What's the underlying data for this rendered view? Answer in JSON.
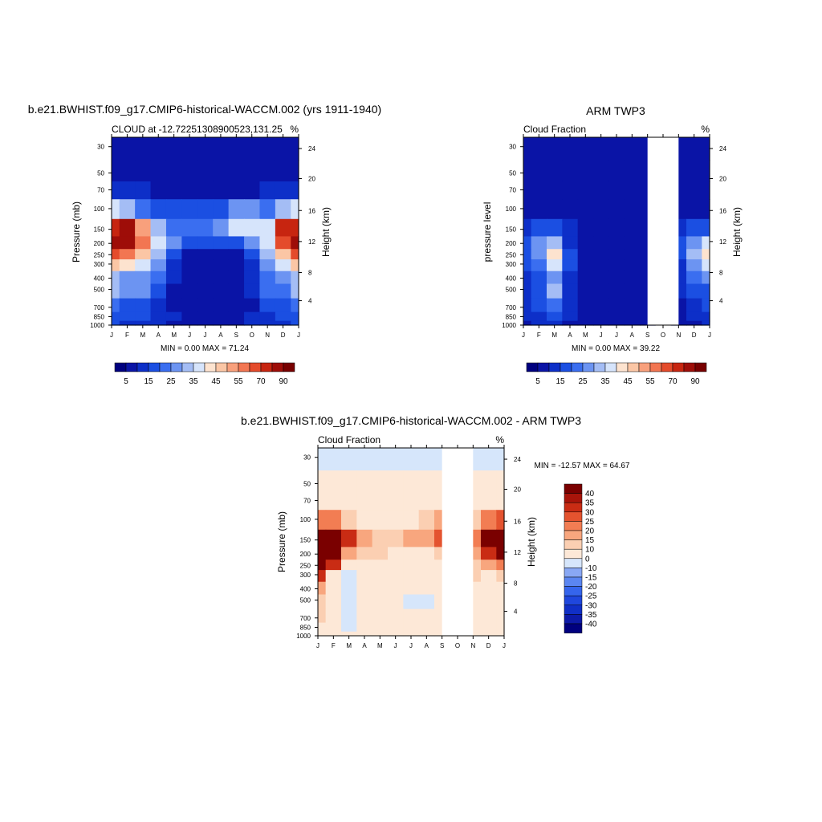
{
  "months": [
    "J",
    "F",
    "M",
    "A",
    "M",
    "J",
    "J",
    "A",
    "S",
    "O",
    "N",
    "D",
    "J"
  ],
  "pressure_ticks": [
    "30",
    "50",
    "70",
    "100",
    "150",
    "200",
    "250",
    "300",
    "400",
    "500",
    "700",
    "850",
    "1000"
  ],
  "height_ticks": [
    "24",
    "20",
    "16",
    "12",
    "8",
    "4"
  ],
  "cbar_labels": [
    "5",
    "15",
    "25",
    "35",
    "45",
    "55",
    "70",
    "90"
  ],
  "diff_cbar_labels": [
    "40",
    "35",
    "30",
    "25",
    "20",
    "15",
    "10",
    "0",
    "-10",
    "-15",
    "-20",
    "-25",
    "-30",
    "-35",
    "-40"
  ],
  "colors": {
    "abs_levels": [
      "#00007f",
      "#0a14a6",
      "#0d2fc8",
      "#1b4fe2",
      "#3a6ef0",
      "#6c94f2",
      "#a4bdf5",
      "#d6e4fb",
      "#fde3cf",
      "#fbc6a5",
      "#f8a07c",
      "#f27652",
      "#e44b2b",
      "#c72510",
      "#9e0d08",
      "#780000"
    ],
    "diff_levels": [
      "#00007f",
      "#0d1aa8",
      "#102fc6",
      "#1f47dd",
      "#3565ec",
      "#5b86f1",
      "#89a8f4",
      "#d6e6fb",
      "#fde8d7",
      "#fbcfb2",
      "#f8a67e",
      "#f27d53",
      "#e4532f",
      "#c92c14",
      "#a8140a",
      "#7a0000"
    ]
  },
  "chart_data": [
    {
      "type": "heatmap",
      "title": "b.e21.BWHIST.f09_g17.CMIP6-historical-WACCM.002 (yrs 1911-1940)",
      "subtitle_left": "CLOUD at -12.72251308900523,131.25",
      "subtitle_right": "%",
      "ylabel": "Pressure (mb)",
      "ylabel_right": "Height (km)",
      "min_max": "MIN =   0.00 MAX =  71.24",
      "values": [
        [
          4,
          3,
          3,
          3,
          2,
          2,
          2,
          2,
          2,
          3,
          3,
          4,
          4
        ],
        [
          4,
          3,
          3,
          3,
          2,
          2,
          2,
          2,
          2,
          3,
          3,
          4,
          4
        ],
        [
          8,
          6,
          5,
          4,
          3,
          3,
          3,
          3,
          3,
          4,
          5,
          7,
          8
        ],
        [
          30,
          26,
          18,
          12,
          10,
          10,
          11,
          13,
          20,
          24,
          18,
          25,
          30
        ],
        [
          68,
          70,
          45,
          25,
          18,
          15,
          18,
          22,
          30,
          32,
          30,
          60,
          68
        ],
        [
          70,
          70,
          52,
          30,
          20,
          12,
          10,
          10,
          12,
          20,
          30,
          58,
          70
        ],
        [
          55,
          50,
          40,
          26,
          12,
          4,
          3,
          3,
          4,
          10,
          25,
          40,
          55
        ],
        [
          40,
          35,
          30,
          20,
          8,
          2,
          1,
          1,
          2,
          8,
          22,
          30,
          40
        ],
        [
          28,
          22,
          24,
          15,
          5,
          1,
          1,
          1,
          1,
          6,
          18,
          22,
          28
        ],
        [
          26,
          20,
          22,
          14,
          3,
          1,
          1,
          1,
          1,
          5,
          16,
          18,
          26
        ],
        [
          18,
          12,
          14,
          9,
          3,
          2,
          2,
          2,
          2,
          4,
          10,
          12,
          18
        ],
        [
          14,
          10,
          10,
          8,
          5,
          4,
          4,
          4,
          4,
          6,
          8,
          10,
          14
        ],
        [
          12,
          8,
          8,
          6,
          4,
          3,
          3,
          3,
          3,
          5,
          6,
          8,
          12
        ]
      ],
      "gap_columns": []
    },
    {
      "type": "heatmap",
      "title": "ARM TWP3",
      "subtitle_left": "Cloud Fraction",
      "subtitle_right": "%",
      "ylabel": "pressure level",
      "ylabel_right": "Height (km)",
      "min_max": "MIN =   0.00 MAX =  39.22",
      "values": [
        [
          0,
          0,
          0,
          0,
          0,
          0,
          0,
          0,
          0,
          null,
          0,
          0,
          0
        ],
        [
          0,
          0,
          0,
          0,
          0,
          0,
          0,
          0,
          0,
          null,
          0,
          0,
          0
        ],
        [
          0,
          0,
          0,
          0,
          0,
          0,
          0,
          0,
          0,
          null,
          0,
          0,
          0
        ],
        [
          4,
          4,
          3,
          1,
          0,
          0,
          0,
          0,
          0,
          null,
          2,
          3,
          4
        ],
        [
          9,
          12,
          12,
          5,
          1,
          0,
          0,
          0,
          0,
          null,
          6,
          12,
          12
        ],
        [
          12,
          20,
          28,
          8,
          2,
          0,
          0,
          0,
          0,
          null,
          10,
          24,
          30
        ],
        [
          12,
          20,
          36,
          10,
          2,
          0,
          0,
          0,
          0,
          null,
          10,
          26,
          36
        ],
        [
          10,
          18,
          32,
          10,
          1,
          0,
          0,
          0,
          0,
          null,
          8,
          22,
          30
        ],
        [
          9,
          14,
          24,
          8,
          1,
          0,
          0,
          0,
          0,
          null,
          6,
          16,
          20
        ],
        [
          8,
          12,
          26,
          8,
          1,
          0,
          0,
          0,
          0,
          null,
          6,
          12,
          14
        ],
        [
          7,
          10,
          18,
          6,
          1,
          0,
          0,
          0,
          0,
          null,
          4,
          8,
          10
        ],
        [
          6,
          8,
          12,
          5,
          2,
          1,
          1,
          1,
          0,
          null,
          4,
          6,
          8
        ],
        [
          4,
          5,
          6,
          3,
          2,
          2,
          2,
          2,
          0,
          null,
          3,
          4,
          5
        ]
      ],
      "gap_columns": [
        9
      ]
    },
    {
      "type": "heatmap",
      "title": "b.e21.BWHIST.f09_g17.CMIP6-historical-WACCM.002 - ARM TWP3",
      "subtitle_left": "Cloud Fraction",
      "subtitle_right": "%",
      "ylabel": "Pressure (mb)",
      "ylabel_right": "Height (km)",
      "min_max": "MIN = -12.57 MAX =  64.67",
      "values": [
        [
          -2,
          -2,
          -2,
          -2,
          -2,
          -2,
          -2,
          -2,
          -2,
          null,
          -2,
          -2,
          -2
        ],
        [
          2,
          2,
          2,
          2,
          2,
          2,
          2,
          2,
          2,
          null,
          2,
          2,
          2
        ],
        [
          5,
          4,
          4,
          3,
          3,
          3,
          3,
          3,
          4,
          null,
          4,
          5,
          6
        ],
        [
          22,
          20,
          14,
          9,
          7,
          8,
          9,
          10,
          16,
          null,
          14,
          22,
          25
        ],
        [
          55,
          52,
          30,
          16,
          14,
          14,
          16,
          18,
          26,
          null,
          20,
          42,
          50
        ],
        [
          58,
          46,
          18,
          14,
          10,
          8,
          8,
          8,
          12,
          null,
          16,
          34,
          42
        ],
        [
          42,
          30,
          6,
          8,
          6,
          4,
          4,
          4,
          4,
          null,
          12,
          18,
          20
        ],
        [
          30,
          8,
          -4,
          6,
          4,
          2,
          2,
          2,
          2,
          null,
          10,
          8,
          10
        ],
        [
          18,
          6,
          -6,
          4,
          2,
          1,
          1,
          1,
          1,
          null,
          8,
          4,
          6
        ],
        [
          14,
          5,
          -4,
          4,
          2,
          1,
          -2,
          -4,
          1,
          null,
          6,
          3,
          4
        ],
        [
          10,
          2,
          -2,
          2,
          1,
          1,
          1,
          1,
          2,
          null,
          4,
          2,
          3
        ],
        [
          8,
          2,
          -2,
          2,
          1,
          1,
          1,
          1,
          2,
          null,
          3,
          2,
          3
        ],
        [
          7,
          3,
          2,
          2,
          1,
          1,
          1,
          1,
          2,
          null,
          3,
          2,
          3
        ]
      ],
      "gap_columns": [
        9
      ]
    }
  ]
}
